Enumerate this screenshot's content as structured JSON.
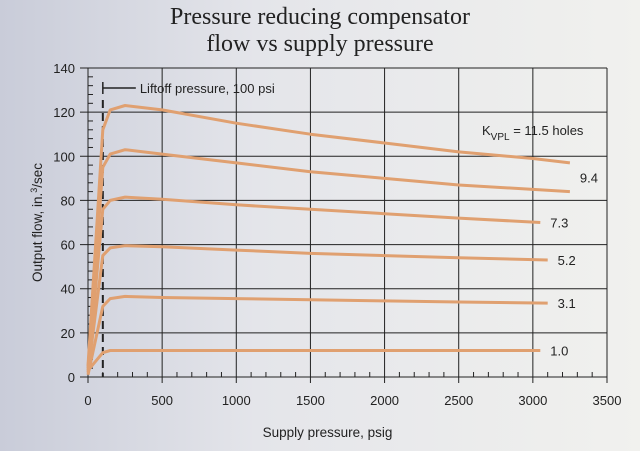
{
  "chart_data": {
    "type": "line",
    "title": [
      "Pressure reducing compensator",
      "flow vs supply pressure"
    ],
    "xlabel": "Supply pressure, psig",
    "ylabel_main": "Output flow, in.",
    "ylabel_sup": "3",
    "ylabel_tail": "/sec",
    "xlim": [
      0,
      3500
    ],
    "ylim": [
      0,
      140
    ],
    "xticks": [
      0,
      500,
      1000,
      1500,
      2000,
      2500,
      3000,
      3500
    ],
    "yticks": [
      0,
      20,
      40,
      60,
      80,
      100,
      120,
      140
    ],
    "grid": true,
    "line_color": "#e0a070",
    "annotation": {
      "text": "Liftoff pressure, 100 psi",
      "x": 100
    },
    "series_label_prefix": "K",
    "series_label_sub": "VPL",
    "series_label_first_suffix": " = 11.5 holes",
    "series": [
      {
        "name": "11.5",
        "label": "",
        "x": [
          0,
          100,
          150,
          250,
          500,
          1000,
          1500,
          2000,
          2500,
          3000,
          3250
        ],
        "y": [
          5,
          112,
          121,
          123,
          121,
          115,
          110,
          106,
          102,
          99,
          97
        ]
      },
      {
        "name": "9.4",
        "label": "9.4",
        "x": [
          0,
          100,
          150,
          250,
          500,
          1000,
          1500,
          2000,
          2500,
          3000,
          3250
        ],
        "y": [
          4,
          95,
          101,
          103,
          101,
          97,
          93,
          90,
          87,
          85,
          84
        ]
      },
      {
        "name": "7.3",
        "label": "7.3",
        "x": [
          0,
          100,
          150,
          250,
          500,
          1000,
          1500,
          2000,
          2500,
          3050
        ],
        "y": [
          3,
          76,
          80,
          81.5,
          80.5,
          78,
          76,
          74,
          72,
          70
        ]
      },
      {
        "name": "5.2",
        "label": "5.2",
        "x": [
          0,
          100,
          150,
          250,
          500,
          1000,
          1500,
          2000,
          2500,
          3100
        ],
        "y": [
          2,
          55,
          58.5,
          59.5,
          59,
          57.5,
          56,
          55,
          54,
          53
        ]
      },
      {
        "name": "3.1",
        "label": "3.1",
        "x": [
          0,
          100,
          150,
          250,
          500,
          1000,
          1500,
          2000,
          2500,
          3100
        ],
        "y": [
          1,
          32,
          35.5,
          36.5,
          36,
          35.5,
          35,
          34.5,
          34,
          33.5
        ]
      },
      {
        "name": "1.0",
        "label": "1.0",
        "x": [
          0,
          100,
          150,
          250,
          1000,
          2000,
          3050
        ],
        "y": [
          3,
          11,
          12,
          12,
          12,
          12,
          12
        ]
      }
    ]
  }
}
